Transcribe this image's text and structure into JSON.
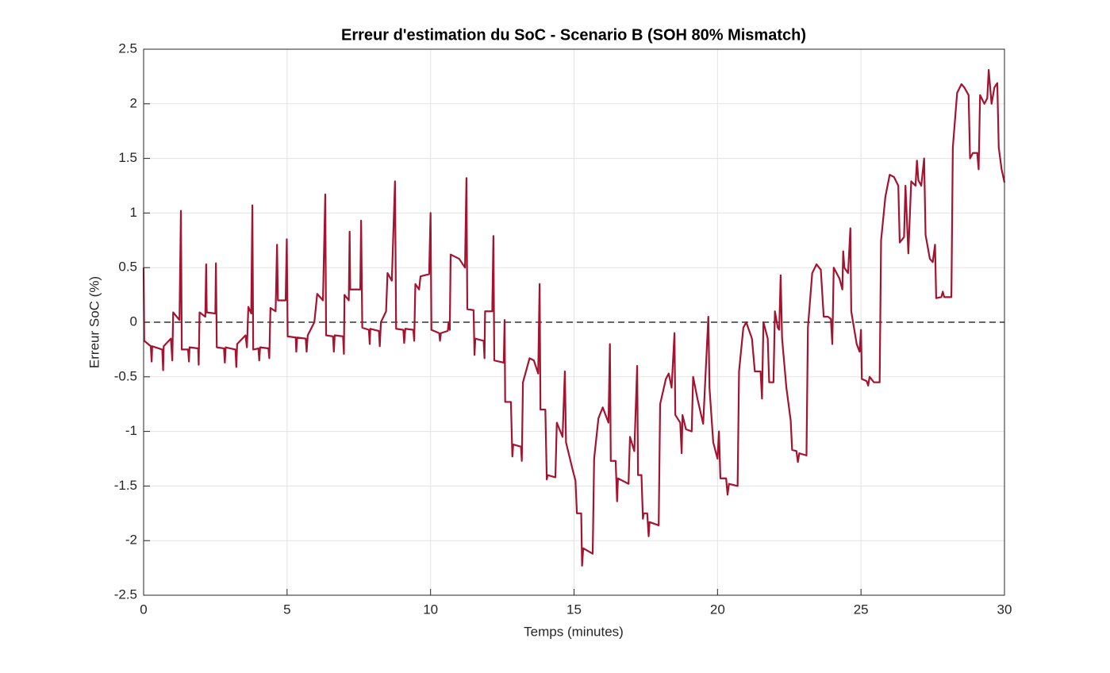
{
  "chart_data": {
    "type": "line",
    "title": "Erreur d'estimation du SoC - Scenario B (SOH 80% Mismatch)",
    "x_label": "Temps (minutes)",
    "y_label": "Erreur SoC (%)",
    "xlim": [
      0,
      30
    ],
    "ylim": [
      -2.5,
      2.5
    ],
    "xticks": [
      0,
      5,
      10,
      15,
      20,
      25,
      30
    ],
    "yticks": [
      -2.5,
      -2,
      -1.5,
      -1,
      -0.5,
      0,
      0.5,
      1,
      1.5,
      2,
      2.5
    ],
    "grid": true,
    "reference_line": {
      "value": 0,
      "style": "dashed",
      "color": "#333333"
    },
    "x": [
      0,
      0.02,
      0.25,
      0.28,
      0.3,
      0.65,
      0.68,
      0.7,
      0.95,
      1.0,
      1.03,
      1.25,
      1.3,
      1.33,
      1.55,
      1.58,
      1.6,
      1.9,
      1.92,
      1.95,
      2.15,
      2.18,
      2.2,
      2.5,
      2.52,
      2.55,
      2.8,
      2.83,
      2.86,
      3.2,
      3.23,
      3.26,
      3.55,
      3.6,
      3.65,
      3.75,
      3.79,
      3.82,
      4.0,
      4.03,
      4.06,
      4.35,
      4.38,
      4.42,
      4.6,
      4.65,
      4.68,
      4.95,
      4.99,
      5.02,
      5.3,
      5.32,
      5.35,
      5.65,
      5.68,
      5.72,
      5.95,
      6.05,
      6.25,
      6.33,
      6.36,
      6.6,
      6.63,
      6.66,
      6.95,
      6.98,
      7.0,
      7.15,
      7.18,
      7.2,
      7.55,
      7.58,
      7.62,
      7.85,
      7.88,
      7.9,
      8.2,
      8.23,
      8.27,
      8.45,
      8.5,
      8.65,
      8.76,
      8.8,
      9.05,
      9.08,
      9.12,
      9.4,
      9.43,
      9.47,
      9.6,
      9.65,
      9.95,
      10.0,
      10.03,
      10.3,
      10.33,
      10.36,
      10.6,
      10.63,
      10.67,
      10.7,
      11.0,
      11.2,
      11.25,
      11.28,
      11.5,
      11.53,
      11.56,
      11.85,
      11.88,
      11.9,
      12.15,
      12.19,
      12.22,
      12.55,
      12.58,
      12.6,
      12.8,
      12.85,
      12.88,
      13.15,
      13.18,
      13.22,
      13.45,
      13.6,
      13.75,
      13.8,
      13.83,
      14.0,
      14.05,
      14.08,
      14.35,
      14.4,
      14.6,
      14.68,
      14.72,
      14.95,
      15.05,
      15.1,
      15.25,
      15.28,
      15.32,
      15.65,
      15.7,
      15.85,
      16.0,
      16.2,
      16.25,
      16.28,
      16.45,
      16.5,
      16.53,
      16.9,
      16.95,
      17.1,
      17.2,
      17.23,
      17.35,
      17.4,
      17.43,
      17.55,
      17.6,
      17.63,
      17.95,
      18.0,
      18.2,
      18.3,
      18.4,
      18.5,
      18.53,
      18.7,
      18.75,
      18.78,
      18.9,
      19.1,
      19.15,
      19.3,
      19.5,
      19.68,
      19.72,
      19.85,
      20.0,
      20.05,
      20.1,
      20.3,
      20.35,
      20.4,
      20.7,
      20.75,
      20.9,
      21.0,
      21.2,
      21.3,
      21.5,
      21.55,
      21.6,
      21.75,
      21.8,
      21.95,
      22.0,
      22.1,
      22.15,
      22.2,
      22.25,
      22.4,
      22.55,
      22.6,
      22.75,
      22.8,
      22.85,
      23.1,
      23.15,
      23.3,
      23.45,
      23.6,
      23.7,
      23.85,
      23.95,
      24.0,
      24.05,
      24.25,
      24.35,
      24.38,
      24.42,
      24.55,
      24.63,
      24.66,
      24.85,
      24.95,
      25.0,
      25.03,
      25.2,
      25.25,
      25.3,
      25.45,
      25.65,
      25.7,
      25.85,
      26.0,
      26.15,
      26.3,
      26.35,
      26.5,
      26.55,
      26.65,
      26.75,
      26.9,
      26.95,
      27.0,
      27.1,
      27.2,
      27.25,
      27.4,
      27.5,
      27.58,
      27.62,
      27.8,
      27.85,
      27.9,
      28.15,
      28.2,
      28.35,
      28.5,
      28.6,
      28.75,
      28.8,
      28.9,
      29.05,
      29.1,
      29.15,
      29.3,
      29.4,
      29.45,
      29.55,
      29.65,
      29.75,
      29.8,
      29.9,
      30.0
    ],
    "series": [
      {
        "color": "#a2142f",
        "values": [
          0.5,
          -0.17,
          -0.22,
          -0.36,
          -0.22,
          -0.25,
          -0.44,
          -0.22,
          -0.15,
          -0.35,
          0.09,
          0.02,
          1.02,
          -0.25,
          -0.25,
          -0.36,
          -0.23,
          -0.24,
          -0.39,
          0.09,
          0.05,
          0.53,
          0.09,
          0.08,
          0.54,
          -0.23,
          -0.24,
          -0.37,
          -0.23,
          -0.25,
          -0.41,
          -0.2,
          -0.12,
          -0.23,
          0.14,
          0.08,
          1.07,
          -0.25,
          -0.24,
          -0.35,
          -0.23,
          -0.24,
          -0.33,
          0.13,
          0.1,
          0.71,
          0.2,
          0.2,
          0.76,
          -0.13,
          -0.14,
          -0.27,
          -0.14,
          -0.15,
          -0.27,
          -0.12,
          0.0,
          0.26,
          0.2,
          1.17,
          -0.12,
          -0.13,
          -0.27,
          -0.12,
          -0.13,
          -0.29,
          0.25,
          0.2,
          0.83,
          0.3,
          0.3,
          0.93,
          -0.05,
          -0.07,
          -0.2,
          -0.06,
          -0.08,
          -0.22,
          0.0,
          0.1,
          0.45,
          0.38,
          1.29,
          -0.06,
          -0.07,
          -0.19,
          -0.06,
          -0.07,
          -0.17,
          0.35,
          0.3,
          0.42,
          0.44,
          1.0,
          -0.07,
          -0.1,
          -0.17,
          -0.1,
          -0.08,
          0.0,
          -0.07,
          0.62,
          0.58,
          0.5,
          1.32,
          0.12,
          0.11,
          -0.3,
          -0.15,
          -0.17,
          -0.33,
          0.1,
          0.1,
          0.79,
          -0.35,
          -0.37,
          0.02,
          -0.73,
          -0.73,
          -1.23,
          -1.12,
          -1.14,
          -1.27,
          -0.55,
          -0.33,
          -0.35,
          -0.47,
          0.35,
          -0.8,
          -0.8,
          -1.44,
          -1.4,
          -1.42,
          -0.92,
          -1.05,
          -0.45,
          -1.1,
          -1.35,
          -1.45,
          -1.75,
          -1.75,
          -2.23,
          -2.07,
          -2.12,
          -1.25,
          -0.88,
          -0.78,
          -0.92,
          -0.2,
          -1.27,
          -1.27,
          -1.64,
          -1.43,
          -1.48,
          -1.05,
          -1.18,
          -0.4,
          -1.4,
          -1.4,
          -1.8,
          -1.75,
          -1.75,
          -1.96,
          -1.83,
          -1.86,
          -0.75,
          -0.52,
          -0.47,
          -0.6,
          -0.1,
          -0.85,
          -0.92,
          -1.2,
          -0.85,
          -0.98,
          -1.0,
          -0.5,
          -0.7,
          -0.93,
          0.05,
          -0.6,
          -1.1,
          -1.25,
          -1.0,
          -1.43,
          -1.43,
          -1.58,
          -1.48,
          -1.5,
          -0.45,
          -0.05,
          0.0,
          -0.15,
          -0.45,
          -0.45,
          -0.7,
          0.0,
          -0.15,
          -0.55,
          -0.55,
          0.1,
          -0.05,
          -0.07,
          0.43,
          -0.15,
          -0.6,
          -0.9,
          -1.17,
          -1.18,
          -1.28,
          -1.2,
          -1.22,
          -0.05,
          0.45,
          0.53,
          0.48,
          0.05,
          0.05,
          0.03,
          -0.2,
          0.5,
          0.4,
          0.3,
          0.65,
          0.5,
          0.45,
          0.86,
          0.1,
          -0.2,
          -0.27,
          -0.07,
          -0.52,
          -0.54,
          -0.58,
          -0.5,
          -0.55,
          -0.55,
          0.75,
          1.15,
          1.35,
          1.33,
          1.25,
          0.73,
          0.78,
          1.25,
          0.63,
          1.29,
          1.25,
          1.48,
          1.3,
          1.25,
          1.5,
          0.8,
          0.58,
          0.55,
          0.71,
          0.22,
          0.23,
          0.28,
          0.23,
          0.23,
          1.6,
          2.1,
          2.18,
          2.15,
          2.08,
          1.5,
          1.55,
          1.55,
          1.4,
          2.08,
          2.0,
          2.05,
          2.31,
          2.0,
          2.15,
          2.19,
          1.6,
          1.4,
          1.28
        ]
      }
    ]
  }
}
